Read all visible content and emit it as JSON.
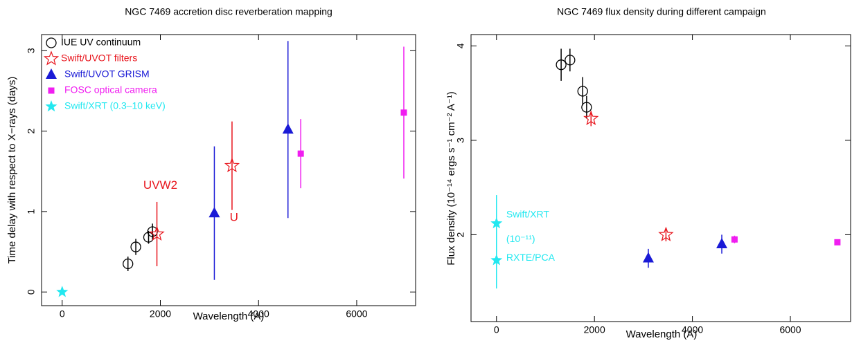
{
  "chart_data": [
    {
      "type": "scatter",
      "title": "NGC 7469 accretion disc reverberation mapping",
      "x_label": "Wavelength (A)",
      "y_label": "Time delay with respect to X−rays (days)",
      "xlim": [
        -420,
        7200
      ],
      "ylim": [
        -0.17,
        3.2
      ],
      "xticks": [
        0,
        2000,
        4000,
        6000
      ],
      "yticks": [
        0,
        1,
        2,
        3
      ],
      "legend": "top-left",
      "series": [
        {
          "name": "IUE UV continuum",
          "color": "#000000",
          "marker": "open-circle",
          "x": [
            1340,
            1500,
            1760,
            1840
          ],
          "values": [
            0.35,
            0.56,
            0.68,
            0.75
          ],
          "errors": [
            0.09,
            0.1,
            0.08,
            0.1
          ]
        },
        {
          "name": "Swift/UVOT filters",
          "color": "#e8141c",
          "marker": "open-star",
          "x": [
            1930,
            3460
          ],
          "values": [
            0.72,
            1.57
          ],
          "errors": [
            0.4,
            0.55
          ]
        },
        {
          "name": "Swift/UVOT GRISM",
          "color": "#1a1ad6",
          "marker": "triangle",
          "x": [
            3100,
            4600
          ],
          "values": [
            0.98,
            2.02
          ],
          "errors": [
            0.83,
            1.1
          ]
        },
        {
          "name": "FOSC optical camera",
          "color": "#f01ef0",
          "marker": "square",
          "x": [
            4860,
            6960
          ],
          "values": [
            1.72,
            2.23
          ],
          "errors": [
            0.43,
            0.82
          ]
        },
        {
          "name": "Swift/XRT (0.3–10 keV)",
          "color": "#22e8f0",
          "marker": "star",
          "x": [
            0
          ],
          "values": [
            0
          ],
          "errors": [
            0
          ]
        }
      ],
      "annotations": [
        {
          "text": "UVW2",
          "color": "#e8141c"
        },
        {
          "text": "U",
          "color": "#e8141c"
        }
      ]
    },
    {
      "type": "scatter",
      "title": "NGC 7469 flux density during different campaign",
      "x_label": "Wavelength (A)",
      "y_label": "Flux density (10⁻¹⁴ ergs s⁻¹ cm⁻² A⁻¹)",
      "xlim": [
        -520,
        7230
      ],
      "ylim": [
        1.08,
        4.12
      ],
      "xticks": [
        0,
        2000,
        4000,
        6000
      ],
      "yticks": [
        2,
        3,
        4
      ],
      "series": [
        {
          "color": "#000000",
          "marker": "open-circle",
          "x": [
            1320,
            1500,
            1760,
            1840
          ],
          "values": [
            3.8,
            3.85,
            3.52,
            3.35
          ],
          "errors": [
            0.17,
            0.12,
            0.15,
            0.12
          ]
        },
        {
          "color": "#e8141c",
          "marker": "open-star",
          "x": [
            1930,
            3460
          ],
          "values": [
            3.23,
            2.0
          ],
          "errors": [
            0.08,
            0.07
          ]
        },
        {
          "color": "#1a1ad6",
          "marker": "triangle",
          "x": [
            3100,
            4600
          ],
          "values": [
            1.75,
            1.9
          ],
          "errors": [
            0.1,
            0.1
          ]
        },
        {
          "color": "#f01ef0",
          "marker": "square",
          "x": [
            4860,
            6960
          ],
          "values": [
            1.95,
            1.92
          ],
          "errors": [
            0.04,
            0.03
          ]
        },
        {
          "color": "#22e8f0",
          "marker": "star",
          "x": [
            0,
            0
          ],
          "values": [
            2.12,
            1.73
          ],
          "errors": [
            0.3,
            0.3
          ]
        }
      ],
      "annotations": [
        {
          "text": "Swift/XRT",
          "color": "#22e8f0"
        },
        {
          "text": "(10⁻¹¹)",
          "color": "#22e8f0"
        },
        {
          "text": "RXTE/PCA",
          "color": "#22e8f0"
        }
      ]
    }
  ]
}
